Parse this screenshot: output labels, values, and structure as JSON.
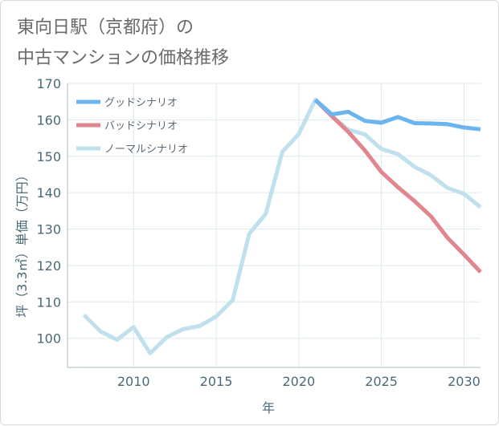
{
  "chart_data": {
    "type": "line",
    "title_lines": [
      "東向日駅（京都府）の",
      "中古マンションの価格推移"
    ],
    "xlabel": "年",
    "ylabel": "坪（3.3㎡）単価（万円）",
    "xlim": [
      2006,
      2031
    ],
    "ylim": [
      92,
      170
    ],
    "x_ticks": [
      2010,
      2015,
      2020,
      2025,
      2030
    ],
    "y_ticks": [
      100,
      110,
      120,
      130,
      140,
      150,
      160,
      170
    ],
    "grid": true,
    "legend_position": "top-left",
    "series": [
      {
        "name": "グッドシナリオ",
        "color": "#6cb4ee",
        "x": [
          2021,
          2022,
          2023,
          2024,
          2025,
          2026,
          2027,
          2028,
          2029,
          2030,
          2031
        ],
        "values": [
          165.5,
          161.5,
          162.2,
          159.7,
          159.2,
          160.8,
          159.1,
          159.0,
          158.8,
          157.9,
          157.4
        ]
      },
      {
        "name": "バッドシナリオ",
        "color": "#e0868f",
        "x": [
          2021,
          2022,
          2023,
          2024,
          2025,
          2026,
          2027,
          2028,
          2029,
          2030,
          2031
        ],
        "values": [
          165.5,
          161.0,
          156.7,
          151.6,
          145.7,
          141.5,
          137.7,
          133.5,
          127.6,
          123.0,
          118.2
        ]
      },
      {
        "name": "ノーマルシナリオ",
        "color": "#bfe0ec",
        "x": [
          2007,
          2008,
          2009,
          2010,
          2011,
          2012,
          2013,
          2014,
          2015,
          2016,
          2017,
          2018,
          2019,
          2020,
          2021,
          2022,
          2023,
          2024,
          2025,
          2026,
          2027,
          2028,
          2029,
          2030,
          2031
        ],
        "values": [
          106.4,
          101.9,
          99.6,
          103.1,
          95.9,
          100.3,
          102.5,
          103.4,
          106.0,
          110.5,
          128.7,
          134.2,
          151.2,
          156.1,
          165.5,
          161.0,
          157.3,
          156.0,
          152.0,
          150.6,
          147.1,
          144.8,
          141.3,
          139.7,
          136.0
        ]
      }
    ]
  }
}
